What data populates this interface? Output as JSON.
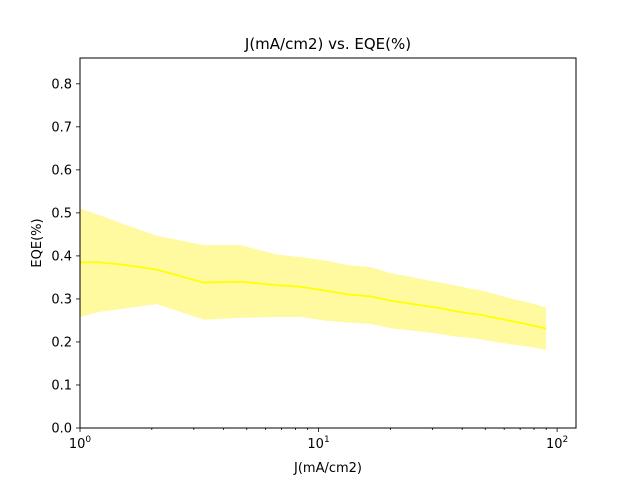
{
  "chart_data": {
    "type": "line",
    "title": "J(mA/cm2) vs. EQE(%)",
    "xlabel": "J(mA/cm2)",
    "ylabel": "EQE(%)",
    "xscale": "log",
    "xlim": [
      1,
      120
    ],
    "ylim": [
      0,
      0.86
    ],
    "grid": false,
    "legend": "none",
    "x_ticks": [
      1,
      10,
      100
    ],
    "x_tick_labels": [
      {
        "base": "10",
        "exp": "0"
      },
      {
        "base": "10",
        "exp": "1"
      },
      {
        "base": "10",
        "exp": "2"
      }
    ],
    "y_ticks": [
      0.0,
      0.1,
      0.2,
      0.3,
      0.4,
      0.5,
      0.6,
      0.7,
      0.8
    ],
    "y_tick_labels": [
      "0.0",
      "0.1",
      "0.2",
      "0.3",
      "0.4",
      "0.5",
      "0.6",
      "0.7",
      "0.8"
    ],
    "colors": {
      "line": "#ffff00",
      "band": "#fff9a0"
    },
    "series": [
      {
        "x": [
          1.0,
          1.2,
          1.5,
          2.1,
          3.3,
          4.7,
          6.7,
          8.5,
          10.5,
          13.5,
          16.5,
          20.0,
          25.0,
          31.0,
          38.0,
          42.0,
          48.0,
          55.0,
          65.0,
          78.0,
          90.0
        ],
        "y": [
          0.385,
          0.385,
          0.38,
          0.368,
          0.338,
          0.34,
          0.332,
          0.328,
          0.32,
          0.31,
          0.306,
          0.296,
          0.288,
          0.28,
          0.271,
          0.267,
          0.263,
          0.256,
          0.248,
          0.239,
          0.231
        ],
        "y_upper": [
          0.51,
          0.495,
          0.475,
          0.447,
          0.425,
          0.425,
          0.403,
          0.397,
          0.39,
          0.378,
          0.374,
          0.36,
          0.35,
          0.34,
          0.331,
          0.325,
          0.32,
          0.311,
          0.3,
          0.29,
          0.28
        ],
        "y_lower": [
          0.258,
          0.27,
          0.277,
          0.288,
          0.252,
          0.256,
          0.258,
          0.258,
          0.25,
          0.245,
          0.242,
          0.232,
          0.226,
          0.22,
          0.212,
          0.21,
          0.206,
          0.2,
          0.194,
          0.188,
          0.182
        ]
      }
    ]
  }
}
